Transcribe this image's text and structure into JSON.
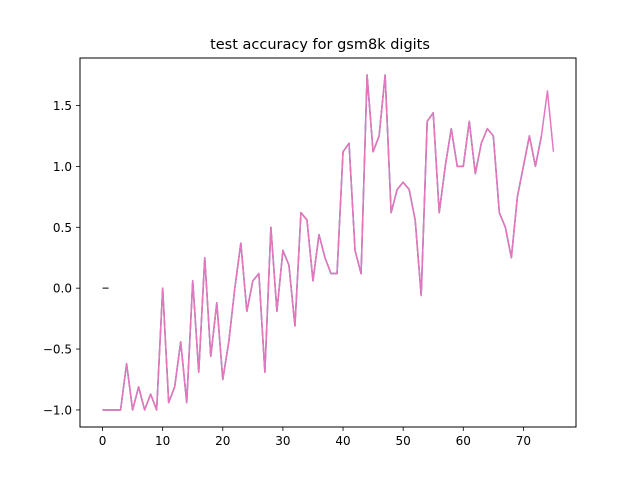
{
  "chart_data": {
    "type": "line",
    "title": "test accuracy for gsm8k digits",
    "xlabel": "",
    "ylabel": "",
    "xlim": [
      -3.75,
      78.75
    ],
    "ylim": [
      -1.14,
      1.89
    ],
    "xticks": [
      0,
      10,
      20,
      30,
      40,
      50,
      60,
      70
    ],
    "yticks": [
      -1.0,
      -0.5,
      0.0,
      0.5,
      1.0,
      1.5
    ],
    "ytick_labels": [
      "−1.0",
      "−0.5",
      "0.0",
      "0.5",
      "1.0",
      "1.5"
    ],
    "grid": false,
    "legend": "none",
    "colors": {
      "dark_series": "#555555",
      "main_series": "#e377c2",
      "axes": "#000000"
    },
    "series": [
      {
        "color_key": "dark_series",
        "x": [
          0,
          1
        ],
        "y": [
          0.0,
          0.0
        ]
      },
      {
        "color_key": "dark_series",
        "x": [
          0,
          1,
          2,
          3,
          4,
          5,
          6,
          7,
          8,
          9,
          10,
          11,
          12,
          13,
          14,
          15,
          16,
          17,
          18,
          19,
          20,
          21,
          22,
          23,
          24,
          25,
          26,
          27,
          28,
          29,
          30,
          31,
          32,
          33,
          34,
          35,
          36,
          37,
          38,
          39,
          40,
          41,
          42,
          43,
          44,
          45,
          46,
          47,
          48,
          49,
          50,
          51,
          52,
          53,
          54,
          55,
          56,
          57,
          58,
          59,
          60,
          61,
          62,
          63,
          64,
          65,
          66,
          67,
          68,
          69,
          70,
          71,
          72,
          73
        ],
        "y": [
          -1.0,
          -1.0,
          -1.0,
          -1.0,
          -0.62,
          -1.0,
          -0.81,
          -1.0,
          -0.87,
          -1.0,
          0.0,
          -0.94,
          -0.81,
          -0.44,
          -0.94,
          0.06,
          -0.69,
          0.25,
          -0.56,
          -0.12,
          -0.75,
          -0.44,
          0.0,
          0.37,
          -0.19,
          0.06,
          0.12,
          -0.69,
          0.5,
          -0.19,
          0.31,
          0.19,
          -0.31,
          0.62,
          0.56,
          0.06,
          0.44,
          0.25,
          0.12,
          0.12,
          1.12,
          1.19,
          0.31,
          0.12,
          1.75,
          1.12,
          1.25,
          1.75,
          0.62,
          0.81,
          0.87,
          0.81,
          0.56,
          -0.06,
          1.37,
          1.44,
          0.62,
          1.0,
          1.31,
          1.0,
          1.0,
          1.37,
          0.94,
          1.19,
          1.31,
          1.25,
          0.62,
          0.5,
          0.25,
          0.75,
          1.0,
          1.25,
          1.0,
          1.25
        ]
      },
      {
        "color_key": "main_series",
        "x": [
          0,
          1,
          2,
          3,
          4,
          5,
          6,
          7,
          8,
          9,
          10,
          11,
          12,
          13,
          14,
          15,
          16,
          17,
          18,
          19,
          20,
          21,
          22,
          23,
          24,
          25,
          26,
          27,
          28,
          29,
          30,
          31,
          32,
          33,
          34,
          35,
          36,
          37,
          38,
          39,
          40,
          41,
          42,
          43,
          44,
          45,
          46,
          47,
          48,
          49,
          50,
          51,
          52,
          53,
          54,
          55,
          56,
          57,
          58,
          59,
          60,
          61,
          62,
          63,
          64,
          65,
          66,
          67,
          68,
          69,
          70,
          71,
          72,
          73,
          74,
          75
        ],
        "y": [
          -1.0,
          -1.0,
          -1.0,
          -1.0,
          -0.62,
          -1.0,
          -0.81,
          -1.0,
          -0.87,
          -1.0,
          0.0,
          -0.94,
          -0.81,
          -0.44,
          -0.94,
          0.06,
          -0.69,
          0.25,
          -0.56,
          -0.12,
          -0.75,
          -0.44,
          0.0,
          0.37,
          -0.19,
          0.06,
          0.12,
          -0.69,
          0.5,
          -0.19,
          0.31,
          0.19,
          -0.31,
          0.62,
          0.56,
          0.06,
          0.44,
          0.25,
          0.12,
          0.12,
          1.12,
          1.19,
          0.31,
          0.12,
          1.75,
          1.12,
          1.25,
          1.75,
          0.62,
          0.81,
          0.87,
          0.81,
          0.56,
          -0.06,
          1.37,
          1.44,
          0.62,
          1.0,
          1.31,
          1.0,
          1.0,
          1.37,
          0.94,
          1.19,
          1.31,
          1.25,
          0.62,
          0.5,
          0.25,
          0.75,
          1.0,
          1.25,
          1.0,
          1.25,
          1.62,
          1.12
        ]
      }
    ]
  }
}
